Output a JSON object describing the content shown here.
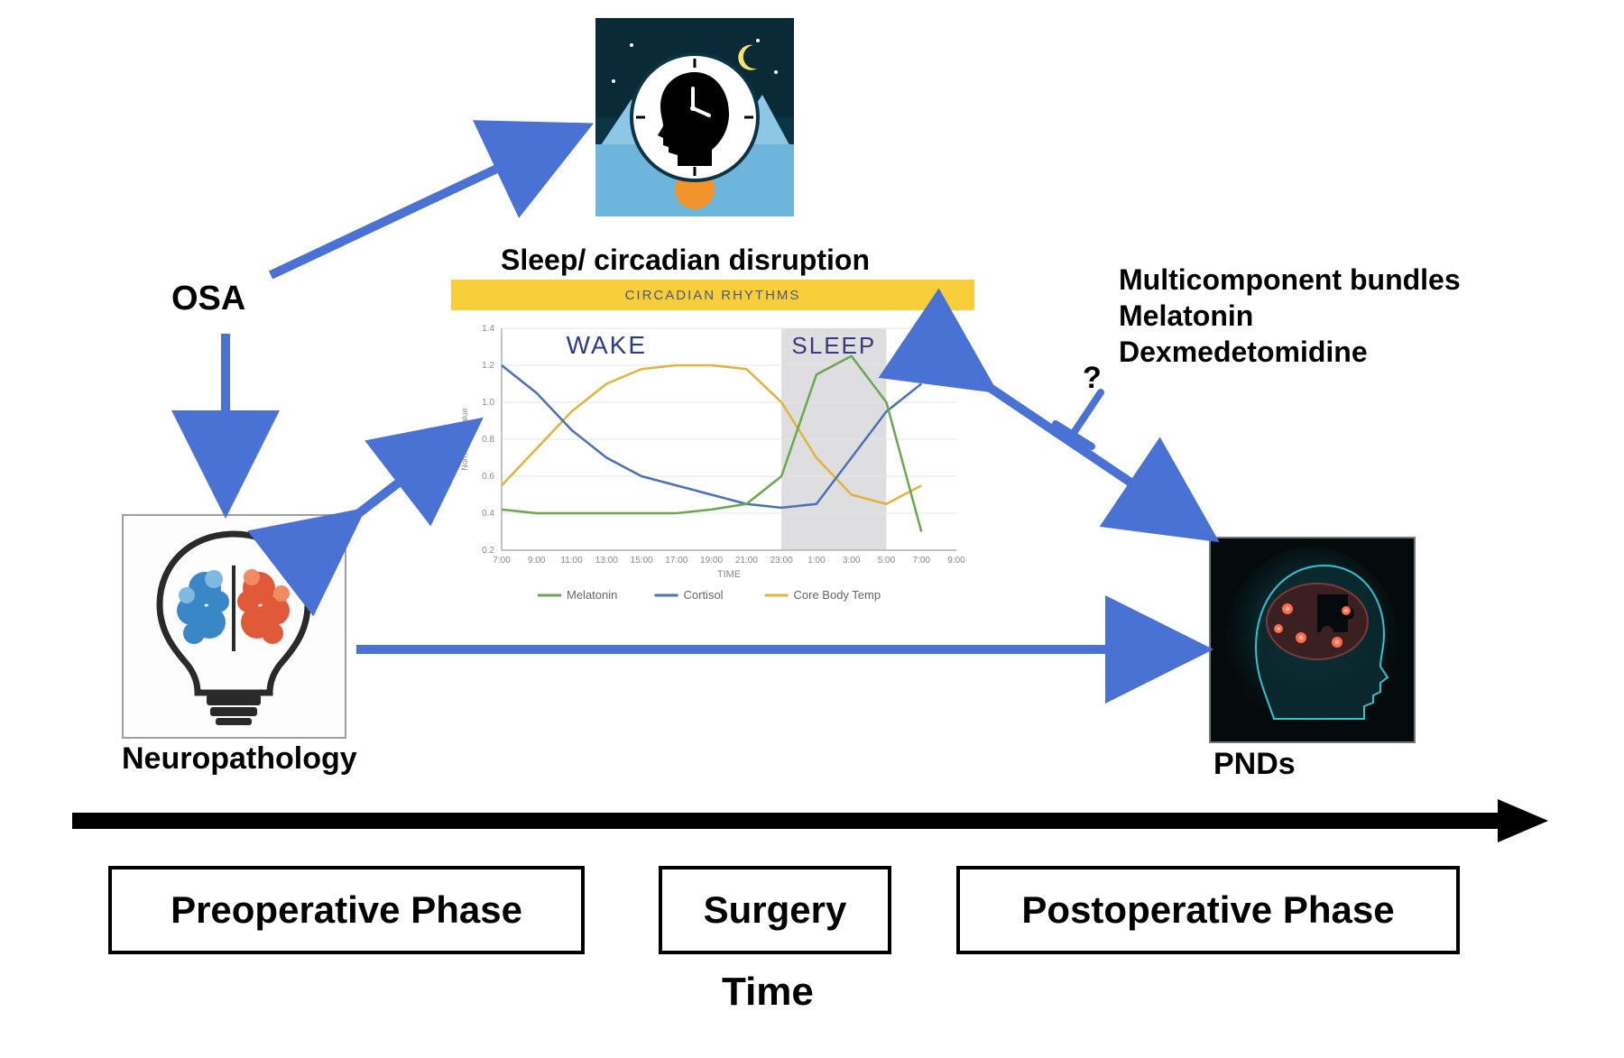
{
  "labels": {
    "osa": "OSA",
    "sleep_disruption": "Sleep/ circadian disruption",
    "neuropathology": "Neuropathology",
    "pnds": "PNDs",
    "time": "Time",
    "question": "?"
  },
  "interventions": {
    "line1": "Multicomponent bundles",
    "line2": "Melatonin",
    "line3": "Dexmedetomidine"
  },
  "phases": {
    "preop": "Preoperative Phase",
    "surgery": "Surgery",
    "postop": "Postoperative Phase"
  },
  "circadian_chart": {
    "type": "line",
    "banner_text": "CIRCADIAN RHYTHMS",
    "banner_bg": "#f8cf3a",
    "banner_text_color": "#4a5a78",
    "wake_label": "WAKE",
    "sleep_label": "SLEEP",
    "wake_label_color": "#2d3a8c",
    "sleep_label_color": "#3a3a7a",
    "sleep_band_color": "#d8d8dc",
    "sleep_band_start_x": 8,
    "sleep_band_end_x": 11,
    "background": "#ffffff",
    "grid_color": "#e6e6e6",
    "axis_color": "#b0b0b0",
    "x_ticks": [
      "7:00",
      "9:00",
      "11:00",
      "13:00",
      "15:00",
      "17:00",
      "19:00",
      "21:00",
      "23:00",
      "1:00",
      "3:00",
      "5:00",
      "7:00",
      "9:00"
    ],
    "y_ticks": [
      "0.2",
      "0.4",
      "0.6",
      "0.8",
      "1.0",
      "1.2",
      "1.4"
    ],
    "ylim": [
      0.2,
      1.4
    ],
    "x_axis_label": "TIME",
    "y_axis_label": "Normalized value",
    "tick_fontsize": 10,
    "label_fontsize": 9,
    "legend": [
      {
        "name": "Melatonin",
        "color": "#6aa84f"
      },
      {
        "name": "Cortisol",
        "color": "#4a72b8"
      },
      {
        "name": "Core Body Temp",
        "color": "#e0b43a"
      }
    ],
    "series": {
      "melatonin": {
        "color": "#6aa84f",
        "stroke_width": 2.5,
        "x": [
          0,
          1,
          2,
          3,
          4,
          5,
          6,
          7,
          8,
          9,
          10,
          11,
          12
        ],
        "y": [
          0.42,
          0.4,
          0.4,
          0.4,
          0.4,
          0.4,
          0.42,
          0.45,
          0.6,
          1.15,
          1.25,
          1.0,
          0.3
        ]
      },
      "cortisol": {
        "color": "#4a72b8",
        "stroke_width": 2.5,
        "x": [
          0,
          1,
          2,
          3,
          4,
          5,
          6,
          7,
          8,
          9,
          10,
          11,
          12
        ],
        "y": [
          1.2,
          1.05,
          0.85,
          0.7,
          0.6,
          0.55,
          0.5,
          0.45,
          0.43,
          0.45,
          0.7,
          0.95,
          1.1
        ]
      },
      "corebodytemp": {
        "color": "#e0b43a",
        "stroke_width": 2.5,
        "x": [
          0,
          1,
          2,
          3,
          4,
          5,
          6,
          7,
          8,
          9,
          10,
          11,
          12
        ],
        "y": [
          0.55,
          0.75,
          0.95,
          1.1,
          1.18,
          1.2,
          1.2,
          1.18,
          1.0,
          0.7,
          0.5,
          0.45,
          0.55
        ]
      }
    }
  },
  "colors": {
    "arrow_blue": "#4a72d4",
    "black": "#000000"
  },
  "arrows": {
    "stroke_width": 10,
    "head_size": 26
  },
  "typography": {
    "main_label_fontsize": 38,
    "sleep_disruption_fontsize": 32,
    "phase_fontsize": 42,
    "time_fontsize": 44,
    "intervention_fontsize": 32,
    "qmark_fontsize": 34
  }
}
